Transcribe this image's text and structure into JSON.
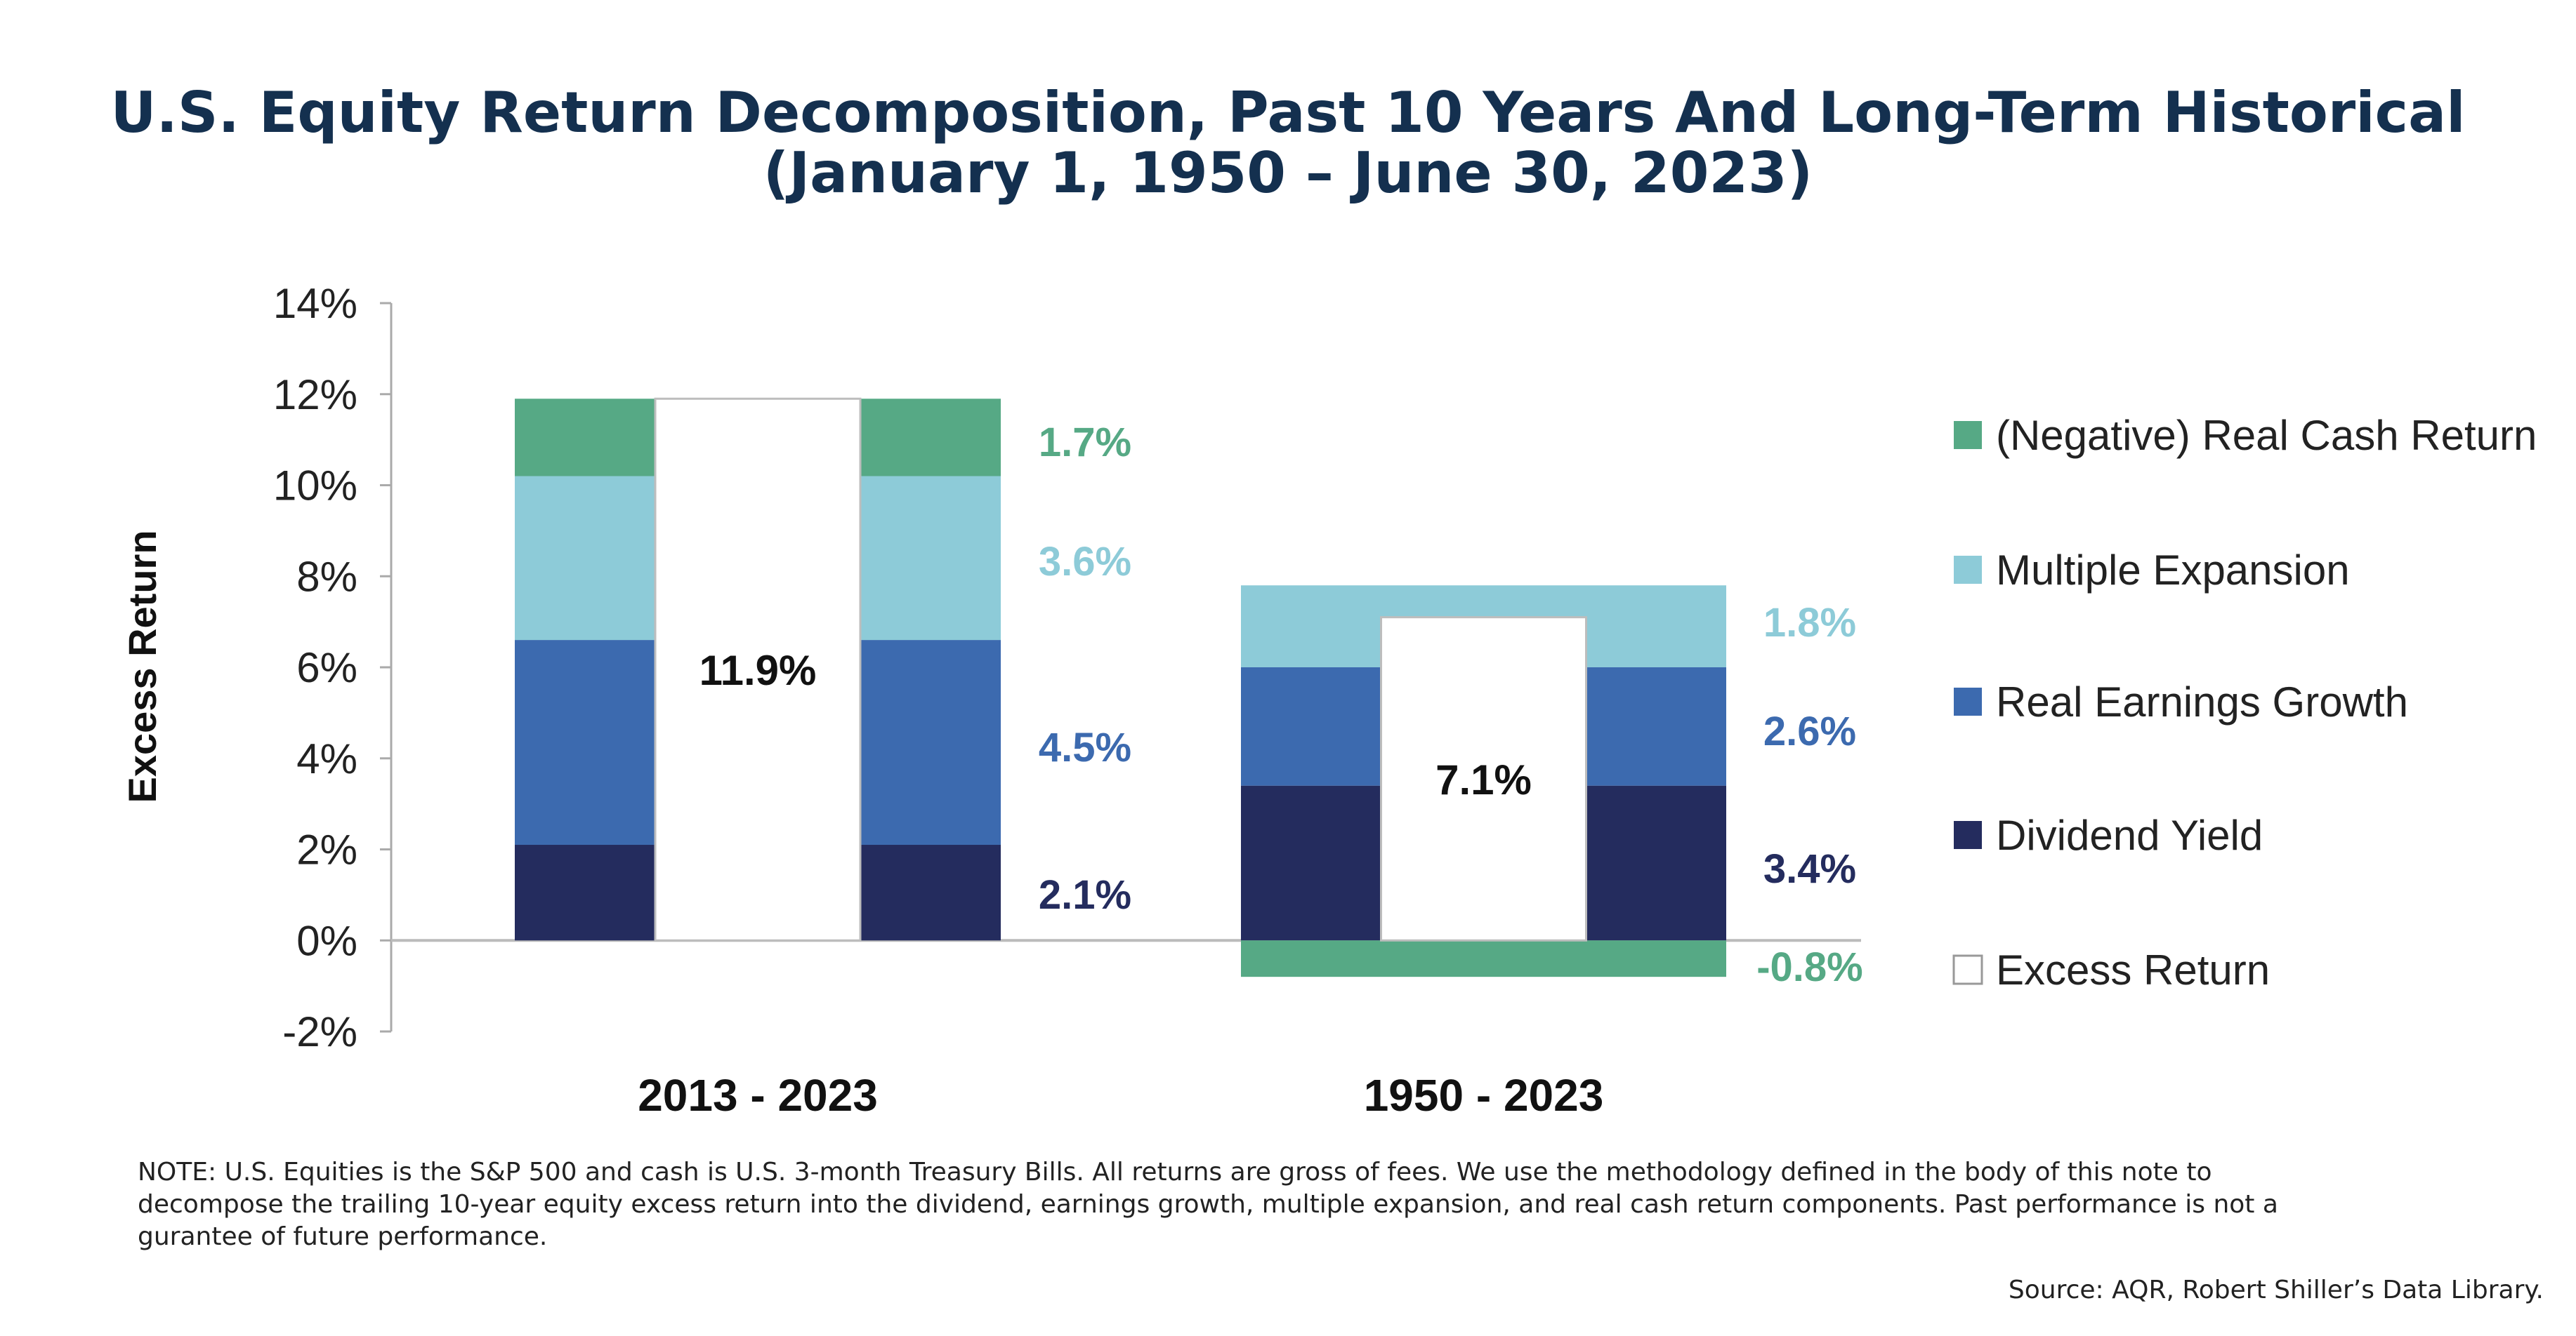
{
  "title_line1": "U.S. Equity Return Decomposition, Past 10 Years And Long-Term Historical",
  "title_line2": "(January 1, 1950 – June 30, 2023)",
  "note": "NOTE: U.S. Equities is the S&P 500 and cash is U.S. 3-month Treasury Bills. All returns are gross of fees. We use the methodology defined in the body of this note to decompose the trailing 10-year equity excess return into the dividend, earnings growth, multiple expansion, and real cash return components. Past performance is not a gurantee of future performance.",
  "source": "Source: AQR, Robert Shiller’s Data Library.",
  "colors": {
    "real_cash": "#56a985",
    "multiple_expansion": "#8dcbd8",
    "real_earnings": "#3c6aaf",
    "dividend_yield": "#242c5e",
    "excess_return": "#ffffff"
  },
  "chart_data": {
    "type": "bar",
    "stacked": true,
    "ylabel": "Excess Return",
    "ylim": [
      -2,
      14
    ],
    "yticks": [
      "14%",
      "12%",
      "10%",
      "8%",
      "6%",
      "4%",
      "2%",
      "0%",
      "-2%"
    ],
    "categories": [
      "2013 - 2023",
      "1950 - 2023"
    ],
    "series": [
      {
        "name": "Dividend Yield",
        "key": "dividend_yield",
        "values": [
          2.1,
          3.4
        ],
        "labels": [
          "2.1%",
          "3.4%"
        ]
      },
      {
        "name": "Real Earnings Growth",
        "key": "real_earnings",
        "values": [
          4.5,
          2.6
        ],
        "labels": [
          "4.5%",
          "2.6%"
        ]
      },
      {
        "name": "Multiple Expansion",
        "key": "multiple_expansion",
        "values": [
          3.6,
          1.8
        ],
        "labels": [
          "3.6%",
          "1.8%"
        ]
      },
      {
        "name": "(Negative) Real Cash Return",
        "key": "real_cash",
        "values": [
          1.7,
          -0.8
        ],
        "labels": [
          "1.7%",
          "-0.8%"
        ]
      }
    ],
    "excess_return": {
      "name": "Excess Return",
      "values": [
        11.9,
        7.1
      ],
      "labels": [
        "11.9%",
        "7.1%"
      ]
    },
    "legend": [
      {
        "name": "(Negative) Real Cash Return",
        "key": "real_cash"
      },
      {
        "name": "Multiple Expansion",
        "key": "multiple_expansion"
      },
      {
        "name": "Real Earnings Growth",
        "key": "real_earnings"
      },
      {
        "name": "Dividend Yield",
        "key": "dividend_yield"
      },
      {
        "name": "Excess Return",
        "key": "excess_return"
      }
    ],
    "legend_position": "right",
    "grid": false
  }
}
